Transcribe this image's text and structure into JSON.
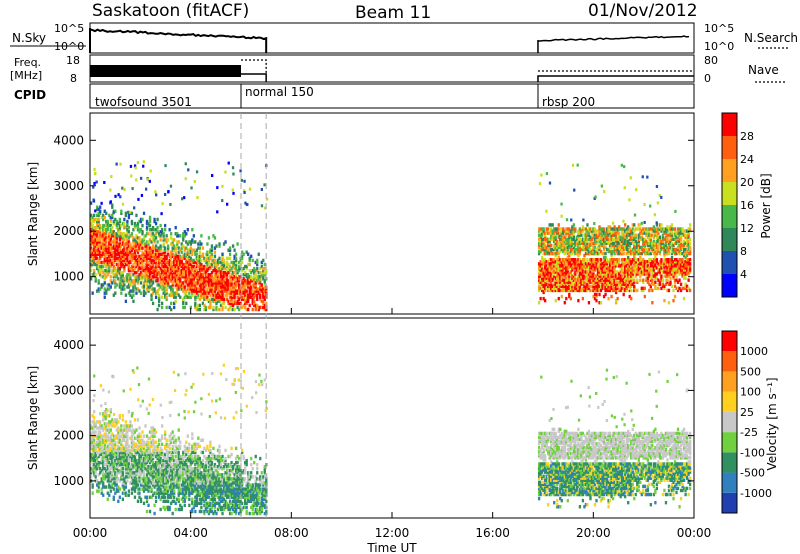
{
  "header": {
    "station": "Saskatoon (fitACF)",
    "beam": "Beam 11",
    "date": "01/Nov/2012"
  },
  "summary_panels": {
    "nsky_label": "N.Sky",
    "nsky_ticks": [
      "10^5",
      "10^0"
    ],
    "nsearch_label": "N.Search",
    "freq_label": [
      "Freq.",
      "[MHz]"
    ],
    "freq_ticks": [
      "18",
      "8"
    ],
    "nave_label": "Nave",
    "nave_ticks": [
      "80",
      "0"
    ],
    "cpid_label": "CPID",
    "cpid_segments": [
      {
        "label": "twofsound 3501",
        "start_hour": 0.0
      },
      {
        "label": "normal 150",
        "start_hour": 6.0
      },
      {
        "label": "rbsp 200",
        "start_hour": 17.8
      }
    ]
  },
  "chart_data": [
    {
      "type": "heatmap",
      "panel": "power",
      "xlabel": "",
      "ylabel": "Slant Range [km]",
      "xlim": [
        0,
        24
      ],
      "ylim": [
        180,
        4600
      ],
      "y_ticks": [
        1000,
        2000,
        3000,
        4000
      ],
      "x_ticks": [
        "00:00",
        "04:00",
        "08:00",
        "12:00",
        "16:00",
        "20:00",
        "00:00"
      ],
      "data_intervals_hours": [
        [
          0.0,
          7.0
        ],
        [
          17.8,
          23.85
        ]
      ],
      "colorbar": {
        "label": "Power [dB]",
        "tick_labels": [
          "4",
          "8",
          "12",
          "16",
          "20",
          "24",
          "28"
        ],
        "colors": [
          "#0000ff",
          "#2050b0",
          "#30885a",
          "#48b848",
          "#c8e020",
          "#ffa020",
          "#ff6010",
          "#ff0000"
        ]
      }
    },
    {
      "type": "heatmap",
      "panel": "velocity",
      "xlabel": "Time UT",
      "ylabel": "Slant Range [km]",
      "xlim": [
        0,
        24
      ],
      "ylim": [
        180,
        4600
      ],
      "y_ticks": [
        1000,
        2000,
        3000,
        4000
      ],
      "x_ticks": [
        "00:00",
        "04:00",
        "08:00",
        "12:00",
        "16:00",
        "20:00",
        "00:00"
      ],
      "data_intervals_hours": [
        [
          0.0,
          7.0
        ],
        [
          17.8,
          23.85
        ]
      ],
      "colorbar": {
        "label": "Velocity [m s⁻¹]",
        "tick_labels": [
          "1000",
          "500",
          "100",
          "25",
          "-25",
          "-100",
          "-500",
          "-1000"
        ],
        "colors": [
          "#2040b0",
          "#3080c0",
          "#309060",
          "#70d040",
          "#c8c8c8",
          "#ffd020",
          "#ffa020",
          "#ff6010",
          "#ff0000"
        ]
      }
    }
  ]
}
